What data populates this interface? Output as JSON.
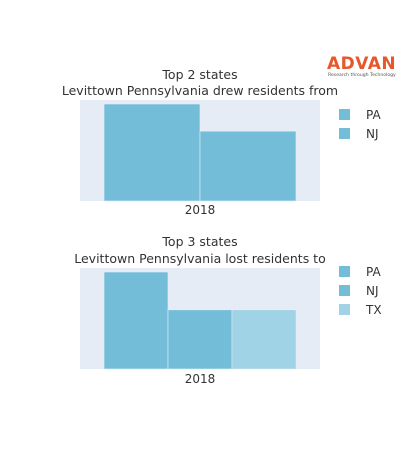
{
  "logo": {
    "name": "ADVAN",
    "tagline": "Research through Technology",
    "color": "#e8572a"
  },
  "plot_bg": "#e5ecf6",
  "chart_data": [
    {
      "type": "bar",
      "title_line1": "Top 2 states",
      "title_line2": "Levittown Pennsylvania drew residents from",
      "categories": [
        "2018"
      ],
      "series": [
        {
          "name": "PA",
          "values": [
            1.0
          ],
          "color": "#74bdd9"
        },
        {
          "name": "NJ",
          "values": [
            0.72
          ],
          "color": "#74bdd9"
        }
      ],
      "ylim": [
        0,
        1.0
      ],
      "legend_position": "right"
    },
    {
      "type": "bar",
      "title_line1": "Top 3 states",
      "title_line2": "Levittown Pennsylvania lost residents to",
      "categories": [
        "2018"
      ],
      "series": [
        {
          "name": "PA",
          "values": [
            1.0
          ],
          "color": "#74bdd9"
        },
        {
          "name": "NJ",
          "values": [
            0.61
          ],
          "color": "#74bdd9"
        },
        {
          "name": "TX",
          "values": [
            0.61
          ],
          "color": "#a0d3e6"
        }
      ],
      "ylim": [
        0,
        1.0
      ],
      "legend_position": "right"
    }
  ]
}
